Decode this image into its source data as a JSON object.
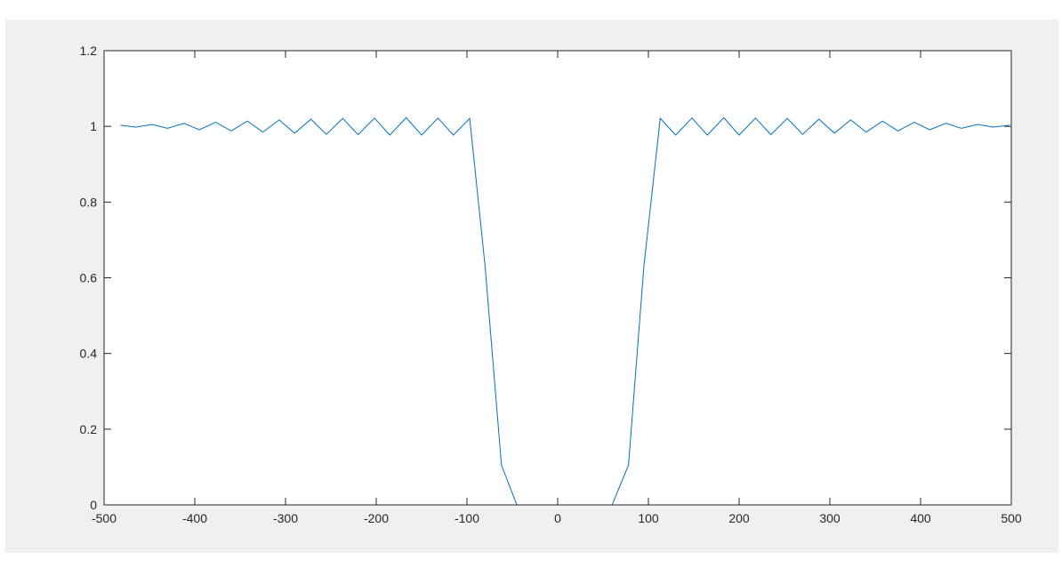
{
  "chart_data": {
    "type": "line",
    "title": "",
    "xlabel": "",
    "ylabel": "",
    "xlim": [
      -500,
      500
    ],
    "ylim": [
      0,
      1.2
    ],
    "xticks": [
      -500,
      -400,
      -300,
      -200,
      -100,
      0,
      100,
      200,
      300,
      400,
      500
    ],
    "yticks": [
      0,
      0.2,
      0.4,
      0.6,
      0.8,
      1,
      1.2
    ],
    "xtick_labels": [
      "-500",
      "-400",
      "-300",
      "-200",
      "-100",
      "0",
      "100",
      "200",
      "300",
      "400",
      "500"
    ],
    "ytick_labels": [
      "0",
      "0.2",
      "0.4",
      "0.6",
      "0.8",
      "1",
      "1.2"
    ],
    "grid": false,
    "line_color": "#0072bd",
    "series": [
      {
        "x": [
          -482,
          -465,
          -447,
          -430,
          -412,
          -395,
          -377,
          -360,
          -342,
          -325,
          -307,
          -290,
          -272,
          -255,
          -237,
          -220,
          -202,
          -185,
          -167,
          -150,
          -132,
          -115,
          -97,
          -80,
          -62,
          -45,
          -27,
          -10,
          8,
          25,
          43,
          60,
          78,
          95,
          113,
          130,
          148,
          165,
          183,
          200,
          218,
          235,
          253,
          270,
          288,
          305,
          323,
          340,
          358,
          375,
          393,
          410,
          428,
          445,
          463,
          480,
          498
        ],
        "y": [
          1.003,
          0.998,
          1.005,
          0.995,
          1.008,
          0.991,
          1.011,
          0.988,
          1.014,
          0.985,
          1.017,
          0.982,
          1.019,
          0.979,
          1.021,
          0.978,
          1.022,
          0.977,
          1.023,
          0.977,
          1.022,
          0.977,
          1.021,
          0.63,
          0.105,
          0.0,
          0.0,
          0.0,
          0.0,
          0.0,
          0.0,
          0.0,
          0.105,
          0.63,
          1.021,
          0.977,
          1.022,
          0.977,
          1.023,
          0.977,
          1.022,
          0.978,
          1.021,
          0.979,
          1.019,
          0.982,
          1.017,
          0.985,
          1.014,
          0.988,
          1.011,
          0.991,
          1.008,
          0.995,
          1.005,
          0.998,
          1.003
        ]
      }
    ]
  }
}
